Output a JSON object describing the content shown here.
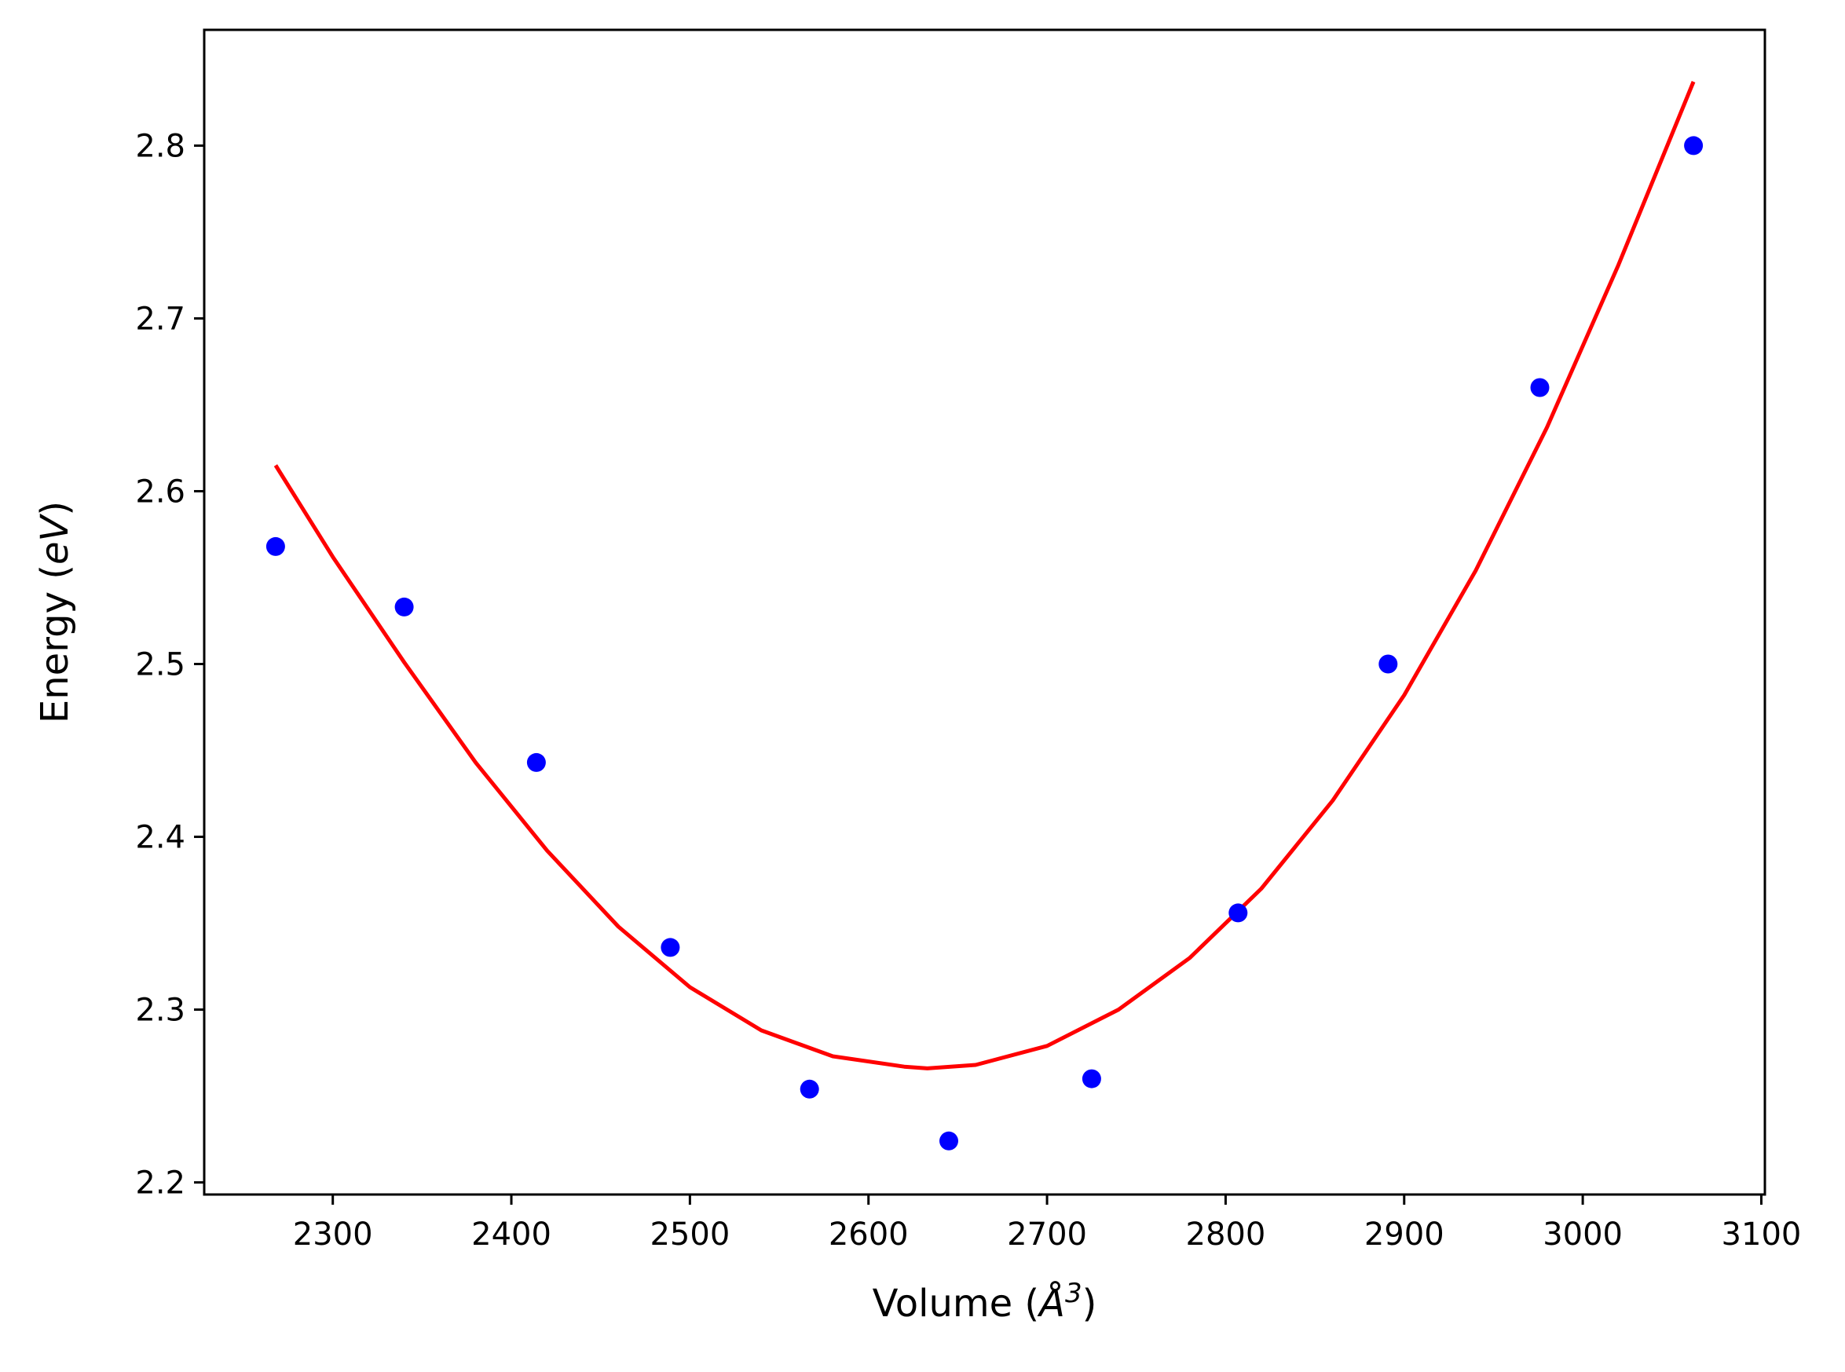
{
  "chart_data": {
    "type": "scatter",
    "xlabel": "Volume (Å³)",
    "xlabel_parts": {
      "main": "Volume (",
      "unit": "Å",
      "sup": "3",
      "close": ")"
    },
    "ylabel": "Energy (eV)",
    "ylabel_parts": {
      "main": "Energy (",
      "unit": "eV",
      "close": ")"
    },
    "xlim": [
      2228,
      3102
    ],
    "ylim": [
      2.193,
      2.867
    ],
    "xticks": [
      2300,
      2400,
      2500,
      2600,
      2700,
      2800,
      2900,
      3000,
      3100
    ],
    "xtick_labels": [
      "2300",
      "2400",
      "2500",
      "2600",
      "2700",
      "2800",
      "2900",
      "3000",
      "3100"
    ],
    "yticks": [
      2.2,
      2.3,
      2.4,
      2.5,
      2.6,
      2.7,
      2.8
    ],
    "ytick_labels": [
      "2.2",
      "2.3",
      "2.4",
      "2.5",
      "2.6",
      "2.7",
      "2.8"
    ],
    "grid": false,
    "legend": "none",
    "colors": {
      "points": "#0000ff",
      "fit": "#ff0000",
      "axes": "#000000"
    },
    "series": [
      {
        "kind": "points",
        "x": [
          2268,
          2340,
          2414,
          2489,
          2567,
          2645,
          2725,
          2807,
          2891,
          2976,
          3062
        ],
        "y": [
          2.568,
          2.533,
          2.443,
          2.336,
          2.254,
          2.224,
          2.26,
          2.356,
          2.5,
          2.66,
          2.8
        ]
      },
      {
        "kind": "fit",
        "x": [
          2268,
          2300,
          2340,
          2380,
          2420,
          2460,
          2500,
          2540,
          2580,
          2620,
          2633,
          2660,
          2700,
          2740,
          2780,
          2820,
          2860,
          2900,
          2940,
          2980,
          3020,
          3062
        ],
        "y": [
          2.615,
          2.562,
          2.501,
          2.443,
          2.392,
          2.348,
          2.313,
          2.288,
          2.273,
          2.267,
          2.266,
          2.268,
          2.279,
          2.3,
          2.33,
          2.37,
          2.421,
          2.482,
          2.554,
          2.637,
          2.731,
          2.837
        ]
      }
    ]
  }
}
